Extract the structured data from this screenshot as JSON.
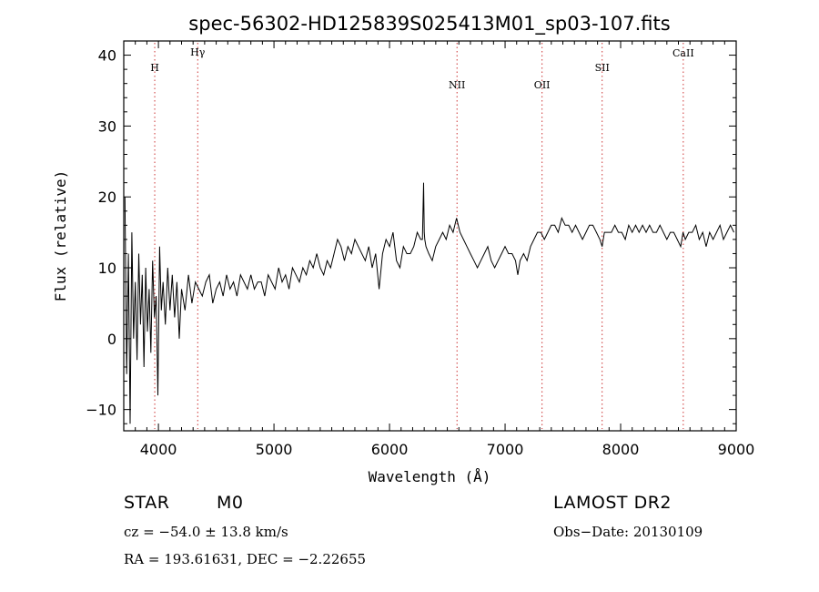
{
  "chart_data": {
    "type": "line",
    "title": "spec-56302-HD125839S025413M01_sp03-107.fits",
    "xlabel": "Wavelength (Å)",
    "ylabel": "Flux (relative)",
    "xlim": [
      3700,
      9000
    ],
    "ylim": [
      -13,
      42
    ],
    "x_ticks": [
      4000,
      5000,
      6000,
      7000,
      8000,
      9000
    ],
    "y_ticks": [
      -10,
      0,
      10,
      20,
      30,
      40
    ],
    "line_color": "#000000",
    "marker_color": "#cc3333",
    "spectral_lines": [
      {
        "label": "H",
        "wavelength": 3968
      },
      {
        "label": "Hγ",
        "wavelength": 4340
      },
      {
        "label": "NII",
        "wavelength": 6584
      },
      {
        "label": "OII",
        "wavelength": 7320
      },
      {
        "label": "SII",
        "wavelength": 7840
      },
      {
        "label": "CaII",
        "wavelength": 8542
      }
    ],
    "series": [
      {
        "wavelength": [
          3710,
          3725,
          3740,
          3755,
          3770,
          3785,
          3800,
          3815,
          3830,
          3845,
          3860,
          3875,
          3890,
          3905,
          3920,
          3935,
          3950,
          3965,
          3980,
          3995,
          4010,
          4025,
          4040,
          4060,
          4080,
          4100,
          4120,
          4140,
          4160,
          4180,
          4200,
          4230,
          4260,
          4290,
          4320,
          4350,
          4380,
          4410,
          4440,
          4470,
          4500,
          4530,
          4560,
          4590,
          4620,
          4650,
          4680,
          4710,
          4740,
          4770,
          4800,
          4830,
          4860,
          4890,
          4920,
          4950,
          4980,
          5010,
          5040,
          5070,
          5100,
          5130,
          5160,
          5190,
          5220,
          5250,
          5280,
          5310,
          5340,
          5370,
          5400,
          5430,
          5460,
          5490,
          5520,
          5550,
          5580,
          5610,
          5640,
          5670,
          5700,
          5730,
          5760,
          5790,
          5820,
          5850,
          5880,
          5910,
          5940,
          5970,
          6000,
          6030,
          6060,
          6090,
          6120,
          6150,
          6180,
          6210,
          6240,
          6270,
          6285,
          6295,
          6300,
          6305,
          6315,
          6340,
          6370,
          6400,
          6430,
          6460,
          6490,
          6520,
          6550,
          6580,
          6610,
          6640,
          6670,
          6700,
          6730,
          6760,
          6790,
          6820,
          6850,
          6880,
          6910,
          6940,
          6970,
          7000,
          7030,
          7060,
          7090,
          7110,
          7130,
          7160,
          7190,
          7220,
          7250,
          7280,
          7310,
          7340,
          7370,
          7400,
          7430,
          7460,
          7490,
          7520,
          7550,
          7580,
          7610,
          7640,
          7670,
          7700,
          7730,
          7760,
          7790,
          7820,
          7840,
          7860,
          7890,
          7920,
          7950,
          7980,
          8010,
          8040,
          8070,
          8100,
          8130,
          8160,
          8190,
          8220,
          8250,
          8280,
          8310,
          8340,
          8370,
          8400,
          8430,
          8460,
          8490,
          8520,
          8540,
          8560,
          8590,
          8620,
          8650,
          8680,
          8710,
          8740,
          8770,
          8800,
          8830,
          8860,
          8890,
          8920,
          8950,
          8980,
          9000
        ],
        "flux": [
          20,
          -5,
          12,
          -12,
          15,
          0,
          8,
          -3,
          12,
          2,
          9,
          -4,
          10,
          1,
          7,
          -2,
          11,
          3,
          6,
          -8,
          13,
          4,
          8,
          2,
          10,
          4,
          9,
          3,
          8,
          0,
          7,
          4,
          9,
          5,
          8,
          7,
          6,
          8,
          9,
          5,
          7,
          8,
          6,
          9,
          7,
          8,
          6,
          9,
          8,
          7,
          9,
          7,
          8,
          8,
          6,
          9,
          8,
          7,
          10,
          8,
          9,
          7,
          10,
          9,
          8,
          10,
          9,
          11,
          10,
          12,
          10,
          9,
          11,
          10,
          12,
          14,
          13,
          11,
          13,
          12,
          14,
          13,
          12,
          11,
          13,
          10,
          12,
          7,
          12,
          14,
          13,
          15,
          11,
          10,
          13,
          12,
          12,
          13,
          15,
          14,
          14,
          22,
          15,
          14,
          13,
          12,
          11,
          13,
          14,
          15,
          14,
          16,
          15,
          17,
          15,
          14,
          13,
          12,
          11,
          10,
          11,
          12,
          13,
          11,
          10,
          11,
          12,
          13,
          12,
          12,
          11,
          9,
          11,
          12,
          11,
          13,
          14,
          15,
          15,
          14,
          15,
          16,
          16,
          15,
          17,
          16,
          16,
          15,
          16,
          15,
          14,
          15,
          16,
          16,
          15,
          14,
          13,
          15,
          15,
          15,
          16,
          15,
          15,
          14,
          16,
          15,
          16,
          15,
          16,
          15,
          16,
          15,
          15,
          16,
          15,
          14,
          15,
          15,
          14,
          13,
          15,
          14,
          15,
          15,
          16,
          14,
          15,
          13,
          15,
          14,
          15,
          16,
          14,
          15,
          16,
          15
        ]
      }
    ]
  },
  "info": {
    "object_type": "STAR",
    "subclass": "M0",
    "survey": "LAMOST DR2",
    "redshift": "cz = −54.0 ± 13.8 km/s",
    "obs_date": "Obs−Date: 20130109",
    "coords": "RA = 193.61631, DEC =  −2.22655"
  }
}
